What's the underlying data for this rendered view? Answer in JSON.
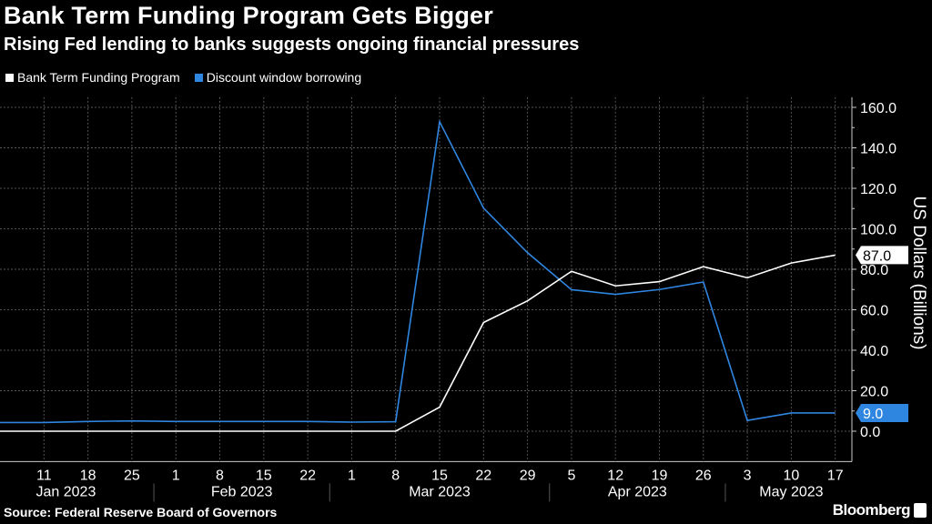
{
  "chart_data": {
    "type": "line",
    "title": "Bank Term Funding Program Gets Bigger",
    "subtitle": "Rising Fed lending to banks suggests ongoing financial pressures",
    "ylabel": "US Dollars (Billions)",
    "xlabel": "",
    "ylim": [
      -15,
      165
    ],
    "yticks": [
      "0.0",
      "20.0",
      "40.0",
      "60.0",
      "80.0",
      "100.0",
      "120.0",
      "140.0",
      "160.0"
    ],
    "ytick_values": [
      0,
      20,
      40,
      60,
      80,
      100,
      120,
      140,
      160
    ],
    "grid": true,
    "legend_position": "top-left",
    "x_tick_labels": [
      "11",
      "18",
      "25",
      "1",
      "8",
      "15",
      "22",
      "1",
      "8",
      "15",
      "22",
      "29",
      "5",
      "12",
      "19",
      "26",
      "3",
      "10",
      "17"
    ],
    "month_labels": [
      "Jan 2023",
      "Feb 2023",
      "Mar 2023",
      "Apr 2023",
      "May 2023"
    ],
    "x": [
      "2023-01-04",
      "2023-01-11",
      "2023-01-18",
      "2023-01-25",
      "2023-02-01",
      "2023-02-08",
      "2023-02-15",
      "2023-02-22",
      "2023-03-01",
      "2023-03-08",
      "2023-03-15",
      "2023-03-22",
      "2023-03-29",
      "2023-04-05",
      "2023-04-12",
      "2023-04-19",
      "2023-04-26",
      "2023-05-03",
      "2023-05-10",
      "2023-05-17"
    ],
    "series": [
      {
        "name": "Bank Term Funding Program",
        "color": "#ffffff",
        "last_label": "87.0",
        "values": [
          0,
          0,
          0,
          0,
          0,
          0,
          0,
          0,
          0,
          0,
          11.9,
          53.7,
          64.4,
          79.0,
          71.8,
          73.9,
          81.3,
          75.8,
          83.1,
          87.0
        ]
      },
      {
        "name": "Discount window borrowing",
        "color": "#2f86e0",
        "last_label": "9.0",
        "values": [
          4.3,
          4.3,
          4.8,
          5.1,
          4.8,
          4.8,
          4.8,
          4.8,
          4.5,
          4.7,
          152.9,
          110.2,
          88.2,
          69.9,
          67.6,
          70.0,
          73.7,
          5.3,
          9.0,
          9.0
        ]
      }
    ]
  },
  "footer": {
    "source": "Source: Federal Reserve Board of Governors",
    "brand": "Bloomberg"
  }
}
